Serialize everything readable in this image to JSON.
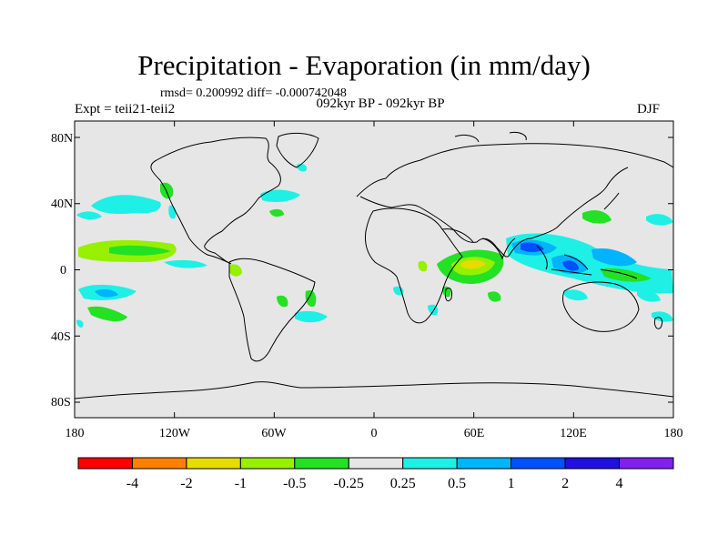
{
  "title": "Precipitation - Evaporation (in mm/day)",
  "stats": "rmsd= 0.200992 diff= -0.000742048",
  "period": "092kyr BP - 092kyr BP",
  "expt": "Expt = teii21-teii2",
  "season": "DJF",
  "axes": {
    "y_ticks": [
      "80N",
      "40N",
      "0",
      "40S",
      "80S"
    ],
    "x_ticks": [
      "180",
      "120W",
      "60W",
      "0",
      "60E",
      "120E",
      "180"
    ]
  },
  "colorbar": {
    "colors": [
      "#ff0000",
      "#ff8000",
      "#e6dc00",
      "#96f000",
      "#23e123",
      "#e6e6e6",
      "#1ef0e6",
      "#00b4ff",
      "#0050ff",
      "#2010e0",
      "#8020f0"
    ],
    "labels": [
      "-4",
      "-2",
      "-1",
      "-0.5",
      "-0.25",
      "0.25",
      "0.5",
      "1",
      "2",
      "4"
    ]
  },
  "colors": {
    "land_ocean": "#e6e6e6",
    "coast": "#000000"
  }
}
